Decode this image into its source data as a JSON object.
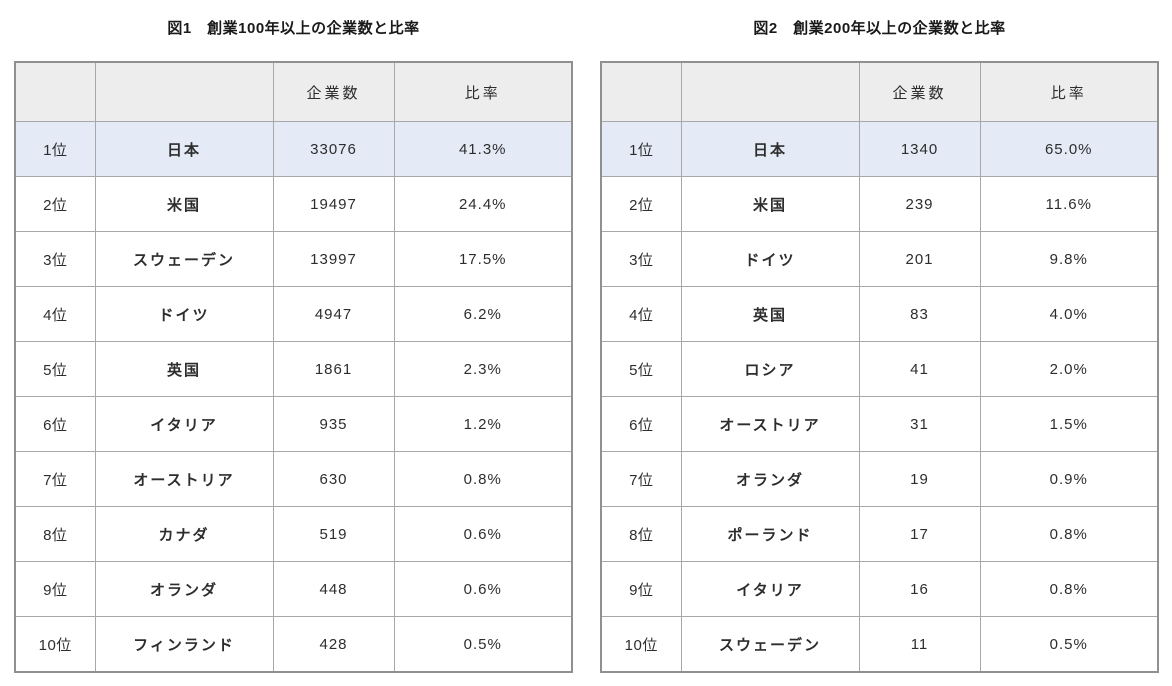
{
  "colors": {
    "page_bg": "#ffffff",
    "header_bg": "#ededed",
    "highlight_row_bg": "#e4ebf7",
    "grid_border": "#a8a8a8",
    "outer_border": "#909090",
    "text": "#2d2d2d",
    "title_text": "#1a1a1a"
  },
  "tables": [
    {
      "title": "図1　創業100年以上の企業数と比率",
      "headers": [
        "",
        "",
        "企業数",
        "比率"
      ],
      "rows": [
        {
          "rank": "1位",
          "country": "日本",
          "count": "33076",
          "ratio": "41.3%",
          "highlight": true
        },
        {
          "rank": "2位",
          "country": "米国",
          "count": "19497",
          "ratio": "24.4%",
          "highlight": false
        },
        {
          "rank": "3位",
          "country": "スウェーデン",
          "count": "13997",
          "ratio": "17.5%",
          "highlight": false
        },
        {
          "rank": "4位",
          "country": "ドイツ",
          "count": "4947",
          "ratio": "6.2%",
          "highlight": false
        },
        {
          "rank": "5位",
          "country": "英国",
          "count": "1861",
          "ratio": "2.3%",
          "highlight": false
        },
        {
          "rank": "6位",
          "country": "イタリア",
          "count": "935",
          "ratio": "1.2%",
          "highlight": false
        },
        {
          "rank": "7位",
          "country": "オーストリア",
          "count": "630",
          "ratio": "0.8%",
          "highlight": false
        },
        {
          "rank": "8位",
          "country": "カナダ",
          "count": "519",
          "ratio": "0.6%",
          "highlight": false
        },
        {
          "rank": "9位",
          "country": "オランダ",
          "count": "448",
          "ratio": "0.6%",
          "highlight": false
        },
        {
          "rank": "10位",
          "country": "フィンランド",
          "count": "428",
          "ratio": "0.5%",
          "highlight": false
        }
      ]
    },
    {
      "title": "図2　創業200年以上の企業数と比率",
      "headers": [
        "",
        "",
        "企業数",
        "比率"
      ],
      "rows": [
        {
          "rank": "1位",
          "country": "日本",
          "count": "1340",
          "ratio": "65.0%",
          "highlight": true
        },
        {
          "rank": "2位",
          "country": "米国",
          "count": "239",
          "ratio": "11.6%",
          "highlight": false
        },
        {
          "rank": "3位",
          "country": "ドイツ",
          "count": "201",
          "ratio": "9.8%",
          "highlight": false
        },
        {
          "rank": "4位",
          "country": "英国",
          "count": "83",
          "ratio": "4.0%",
          "highlight": false
        },
        {
          "rank": "5位",
          "country": "ロシア",
          "count": "41",
          "ratio": "2.0%",
          "highlight": false
        },
        {
          "rank": "6位",
          "country": "オーストリア",
          "count": "31",
          "ratio": "1.5%",
          "highlight": false
        },
        {
          "rank": "7位",
          "country": "オランダ",
          "count": "19",
          "ratio": "0.9%",
          "highlight": false
        },
        {
          "rank": "8位",
          "country": "ポーランド",
          "count": "17",
          "ratio": "0.8%",
          "highlight": false
        },
        {
          "rank": "9位",
          "country": "イタリア",
          "count": "16",
          "ratio": "0.8%",
          "highlight": false
        },
        {
          "rank": "10位",
          "country": "スウェーデン",
          "count": "11",
          "ratio": "0.5%",
          "highlight": false
        }
      ]
    }
  ],
  "chart_data": [
    {
      "type": "table",
      "title": "図1　創業100年以上の企業数と比率",
      "columns": [
        "",
        "",
        "企業数",
        "比率"
      ],
      "highlight_row_index": 0,
      "rows": [
        [
          "1位",
          "日本",
          33076,
          "41.3%"
        ],
        [
          "2位",
          "米国",
          19497,
          "24.4%"
        ],
        [
          "3位",
          "スウェーデン",
          13997,
          "17.5%"
        ],
        [
          "4位",
          "ドイツ",
          4947,
          "6.2%"
        ],
        [
          "5位",
          "英国",
          1861,
          "2.3%"
        ],
        [
          "6位",
          "イタリア",
          935,
          "1.2%"
        ],
        [
          "7位",
          "オーストリア",
          630,
          "0.8%"
        ],
        [
          "8位",
          "カナダ",
          519,
          "0.6%"
        ],
        [
          "9位",
          "オランダ",
          448,
          "0.6%"
        ],
        [
          "10位",
          "フィンランド",
          428,
          "0.5%"
        ]
      ]
    },
    {
      "type": "table",
      "title": "図2　創業200年以上の企業数と比率",
      "columns": [
        "",
        "",
        "企業数",
        "比率"
      ],
      "highlight_row_index": 0,
      "rows": [
        [
          "1位",
          "日本",
          1340,
          "65.0%"
        ],
        [
          "2位",
          "米国",
          239,
          "11.6%"
        ],
        [
          "3位",
          "ドイツ",
          201,
          "9.8%"
        ],
        [
          "4位",
          "英国",
          83,
          "4.0%"
        ],
        [
          "5位",
          "ロシア",
          41,
          "2.0%"
        ],
        [
          "6位",
          "オーストリア",
          31,
          "1.5%"
        ],
        [
          "7位",
          "オランダ",
          19,
          "0.9%"
        ],
        [
          "8位",
          "ポーランド",
          17,
          "0.8%"
        ],
        [
          "9位",
          "イタリア",
          16,
          "0.8%"
        ],
        [
          "10位",
          "スウェーデン",
          11,
          "0.5%"
        ]
      ]
    }
  ]
}
